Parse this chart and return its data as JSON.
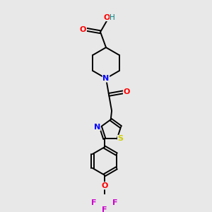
{
  "bg_color": "#e8e8e8",
  "bond_color": "#000000",
  "atom_colors": {
    "O": "#ff0000",
    "N": "#0000ff",
    "S": "#cccc00",
    "F": "#cc00cc",
    "C": "#000000",
    "H": "#008080"
  },
  "lw": 1.4,
  "fs": 8.0
}
